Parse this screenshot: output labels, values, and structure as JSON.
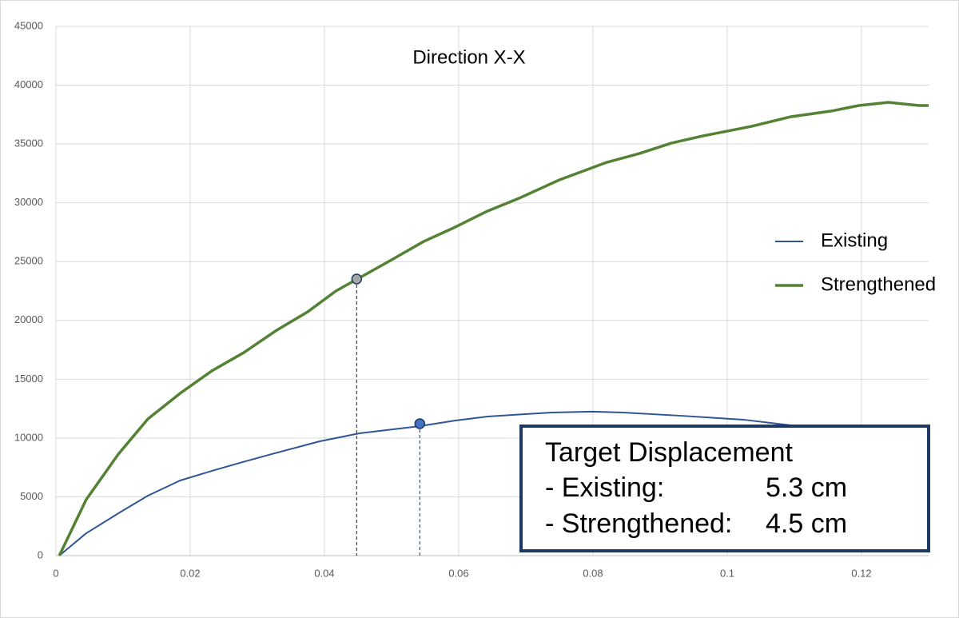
{
  "chart_data": {
    "type": "line",
    "title": "Direction X-X",
    "xlim": [
      0,
      0.13
    ],
    "xticks": [
      0,
      0.02,
      0.04,
      0.06,
      0.08,
      0.1,
      0.12
    ],
    "ylim": [
      0,
      45000
    ],
    "yticks": [
      0,
      5000,
      10000,
      15000,
      20000,
      25000,
      30000,
      35000,
      40000,
      45000
    ],
    "grid": true,
    "legend": "right",
    "series": [
      {
        "name": "Existing",
        "color": "#2f5597",
        "x": [
          0.0005,
          0.0045,
          0.0095,
          0.0137,
          0.0185,
          0.0232,
          0.0274,
          0.0321,
          0.0393,
          0.0452,
          0.0502,
          0.0542,
          0.0595,
          0.0643,
          0.0738,
          0.0798,
          0.0845,
          0.0929,
          0.1024,
          0.1095
        ],
        "values": [
          0,
          1900,
          3670,
          5100,
          6390,
          7200,
          7890,
          8630,
          9720,
          10400,
          10740,
          11010,
          11490,
          11830,
          12170,
          12240,
          12170,
          11900,
          11560,
          11080
        ]
      },
      {
        "name": "Strengthened",
        "color": "#548235",
        "x": [
          0.0005,
          0.0045,
          0.0093,
          0.0137,
          0.0185,
          0.0232,
          0.028,
          0.0327,
          0.0375,
          0.0417,
          0.0449,
          0.05,
          0.0548,
          0.0595,
          0.0643,
          0.069,
          0.075,
          0.0821,
          0.0869,
          0.0917,
          0.0964,
          0.1036,
          0.1095,
          0.1155,
          0.1196,
          0.124,
          0.1286,
          0.13
        ],
        "values": [
          0,
          4760,
          8630,
          11620,
          13800,
          15700,
          17270,
          19100,
          20730,
          22500,
          23520,
          25150,
          26720,
          27940,
          29300,
          30390,
          31950,
          33450,
          34190,
          35080,
          35690,
          36500,
          37320,
          37800,
          38270,
          38540,
          38270,
          38270
        ]
      }
    ],
    "points": [
      {
        "x": 0.0448,
        "y": 23520,
        "color": "#a6a6a6"
      },
      {
        "x": 0.0542,
        "y": 11220,
        "color": "#4472c4"
      }
    ],
    "annotation": {
      "title": "Target Displacement",
      "rows": [
        [
          "- Existing:",
          "5.3 cm"
        ],
        [
          "- Strengthened:",
          "4.5 cm"
        ]
      ]
    }
  }
}
